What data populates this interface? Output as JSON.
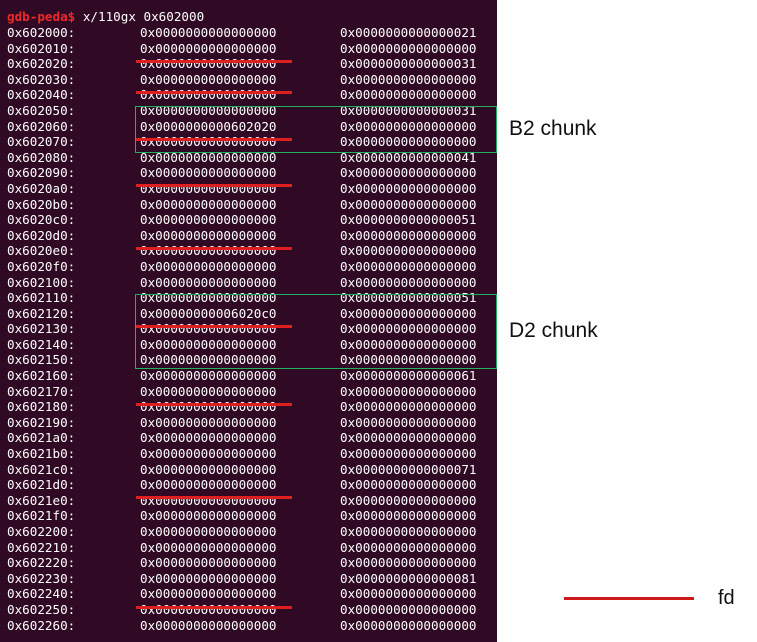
{
  "terminal": {
    "prompt": "gdb-peda$",
    "command": "x/110gx 0x602000",
    "rows": [
      {
        "addr": "0x602000:",
        "v1": "0x0000000000000000",
        "v2": "0x0000000000000021",
        "fd": false
      },
      {
        "addr": "0x602010:",
        "v1": "0x0000000000000000",
        "v2": "0x0000000000000000",
        "fd": true
      },
      {
        "addr": "0x602020:",
        "v1": "0x0000000000000000",
        "v2": "0x0000000000000031",
        "fd": false
      },
      {
        "addr": "0x602030:",
        "v1": "0x0000000000000000",
        "v2": "0x0000000000000000",
        "fd": true
      },
      {
        "addr": "0x602040:",
        "v1": "0x0000000000000000",
        "v2": "0x0000000000000000",
        "fd": false
      },
      {
        "addr": "0x602050:",
        "v1": "0x0000000000000000",
        "v2": "0x0000000000000031",
        "fd": false
      },
      {
        "addr": "0x602060:",
        "v1": "0x0000000000602020",
        "v2": "0x0000000000000000",
        "fd": true
      },
      {
        "addr": "0x602070:",
        "v1": "0x0000000000000000",
        "v2": "0x0000000000000000",
        "fd": false
      },
      {
        "addr": "0x602080:",
        "v1": "0x0000000000000000",
        "v2": "0x0000000000000041",
        "fd": false
      },
      {
        "addr": "0x602090:",
        "v1": "0x0000000000000000",
        "v2": "0x0000000000000000",
        "fd": true
      },
      {
        "addr": "0x6020a0:",
        "v1": "0x0000000000000000",
        "v2": "0x0000000000000000",
        "fd": false
      },
      {
        "addr": "0x6020b0:",
        "v1": "0x0000000000000000",
        "v2": "0x0000000000000000",
        "fd": false
      },
      {
        "addr": "0x6020c0:",
        "v1": "0x0000000000000000",
        "v2": "0x0000000000000051",
        "fd": false
      },
      {
        "addr": "0x6020d0:",
        "v1": "0x0000000000000000",
        "v2": "0x0000000000000000",
        "fd": true
      },
      {
        "addr": "0x6020e0:",
        "v1": "0x0000000000000000",
        "v2": "0x0000000000000000",
        "fd": false
      },
      {
        "addr": "0x6020f0:",
        "v1": "0x0000000000000000",
        "v2": "0x0000000000000000",
        "fd": false
      },
      {
        "addr": "0x602100:",
        "v1": "0x0000000000000000",
        "v2": "0x0000000000000000",
        "fd": false
      },
      {
        "addr": "0x602110:",
        "v1": "0x0000000000000000",
        "v2": "0x0000000000000051",
        "fd": false
      },
      {
        "addr": "0x602120:",
        "v1": "0x00000000006020c0",
        "v2": "0x0000000000000000",
        "fd": true
      },
      {
        "addr": "0x602130:",
        "v1": "0x0000000000000000",
        "v2": "0x0000000000000000",
        "fd": false
      },
      {
        "addr": "0x602140:",
        "v1": "0x0000000000000000",
        "v2": "0x0000000000000000",
        "fd": false
      },
      {
        "addr": "0x602150:",
        "v1": "0x0000000000000000",
        "v2": "0x0000000000000000",
        "fd": false
      },
      {
        "addr": "0x602160:",
        "v1": "0x0000000000000000",
        "v2": "0x0000000000000061",
        "fd": false
      },
      {
        "addr": "0x602170:",
        "v1": "0x0000000000000000",
        "v2": "0x0000000000000000",
        "fd": true
      },
      {
        "addr": "0x602180:",
        "v1": "0x0000000000000000",
        "v2": "0x0000000000000000",
        "fd": false
      },
      {
        "addr": "0x602190:",
        "v1": "0x0000000000000000",
        "v2": "0x0000000000000000",
        "fd": false
      },
      {
        "addr": "0x6021a0:",
        "v1": "0x0000000000000000",
        "v2": "0x0000000000000000",
        "fd": false
      },
      {
        "addr": "0x6021b0:",
        "v1": "0x0000000000000000",
        "v2": "0x0000000000000000",
        "fd": false
      },
      {
        "addr": "0x6021c0:",
        "v1": "0x0000000000000000",
        "v2": "0x0000000000000071",
        "fd": false
      },
      {
        "addr": "0x6021d0:",
        "v1": "0x0000000000000000",
        "v2": "0x0000000000000000",
        "fd": true
      },
      {
        "addr": "0x6021e0:",
        "v1": "0x0000000000000000",
        "v2": "0x0000000000000000",
        "fd": false
      },
      {
        "addr": "0x6021f0:",
        "v1": "0x0000000000000000",
        "v2": "0x0000000000000000",
        "fd": false
      },
      {
        "addr": "0x602200:",
        "v1": "0x0000000000000000",
        "v2": "0x0000000000000000",
        "fd": false
      },
      {
        "addr": "0x602210:",
        "v1": "0x0000000000000000",
        "v2": "0x0000000000000000",
        "fd": false
      },
      {
        "addr": "0x602220:",
        "v1": "0x0000000000000000",
        "v2": "0x0000000000000000",
        "fd": false
      },
      {
        "addr": "0x602230:",
        "v1": "0x0000000000000000",
        "v2": "0x0000000000000081",
        "fd": false
      },
      {
        "addr": "0x602240:",
        "v1": "0x0000000000000000",
        "v2": "0x0000000000000000",
        "fd": true
      },
      {
        "addr": "0x602250:",
        "v1": "0x0000000000000000",
        "v2": "0x0000000000000000",
        "fd": false
      },
      {
        "addr": "0x602260:",
        "v1": "0x0000000000000000",
        "v2": "0x0000000000000000",
        "fd": false
      }
    ]
  },
  "annotations": {
    "b2_label": "B2 chunk",
    "d2_label": "D2 chunk",
    "legend_label": "fd"
  },
  "colors": {
    "terminal_bg": "#300a24",
    "prompt": "#ef2929",
    "fd_underline": "#dd1f1f",
    "chunk_box": "#20b060"
  }
}
